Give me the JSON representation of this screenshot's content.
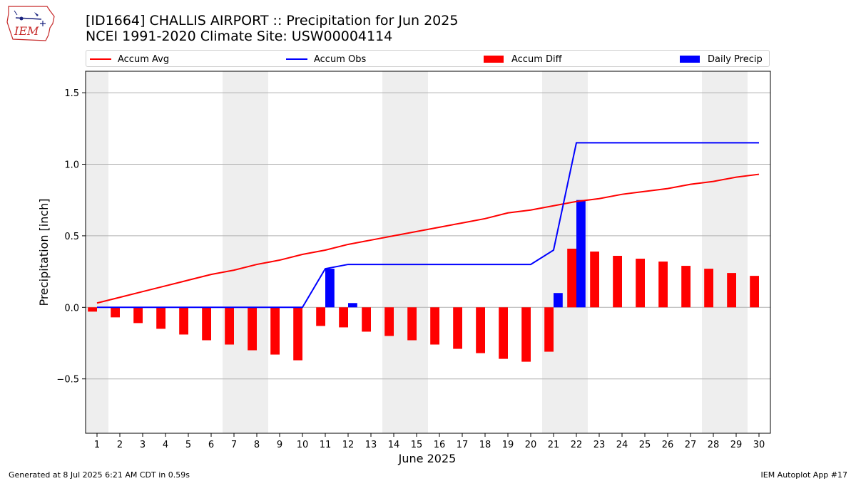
{
  "header": {
    "title_line1": "[ID1664] CHALLIS AIRPORT :: Precipitation for Jun 2025",
    "title_line2": "NCEI 1991-2020 Climate Site: USW00004114",
    "logo_text": "IEM"
  },
  "footer": {
    "left": "Generated at 8 Jul 2025 6:21 AM CDT in 0.59s",
    "right": "IEM Autoplot App #17"
  },
  "colors": {
    "accum_avg": "#ff0000",
    "accum_obs": "#0000ff",
    "accum_diff": "#ff0000",
    "daily_precip": "#0000ff",
    "weekend_shade": "#eeeeee",
    "grid": "#b0b0b0"
  },
  "chart_data": {
    "type": "bar",
    "xlabel": "June 2025",
    "ylabel": "Precipitation [inch]",
    "ylim": [
      -0.88,
      1.65
    ],
    "yticks": [
      -0.5,
      0.0,
      0.5,
      1.0,
      1.5
    ],
    "ytick_labels": [
      "−0.5",
      "0.0",
      "0.5",
      "1.0",
      "1.5"
    ],
    "grid": "horizontal",
    "legend_position": "top",
    "x": [
      1,
      2,
      3,
      4,
      5,
      6,
      7,
      8,
      9,
      10,
      11,
      12,
      13,
      14,
      15,
      16,
      17,
      18,
      19,
      20,
      21,
      22,
      23,
      24,
      25,
      26,
      27,
      28,
      29,
      30
    ],
    "shaded_days": [
      1,
      7,
      8,
      14,
      15,
      21,
      22,
      28,
      29
    ],
    "series": [
      {
        "name": "Accum Avg",
        "kind": "line",
        "values": [
          0.03,
          0.07,
          0.11,
          0.15,
          0.19,
          0.23,
          0.26,
          0.3,
          0.33,
          0.37,
          0.4,
          0.44,
          0.47,
          0.5,
          0.53,
          0.56,
          0.59,
          0.62,
          0.66,
          0.68,
          0.71,
          0.74,
          0.76,
          0.79,
          0.81,
          0.83,
          0.86,
          0.88,
          0.91,
          0.93
        ]
      },
      {
        "name": "Accum Obs",
        "kind": "line",
        "values": [
          0,
          0,
          0,
          0,
          0,
          0,
          0,
          0,
          0,
          0,
          0.27,
          0.3,
          0.3,
          0.3,
          0.3,
          0.3,
          0.3,
          0.3,
          0.3,
          0.3,
          0.4,
          1.15,
          1.15,
          1.15,
          1.15,
          1.15,
          1.15,
          1.15,
          1.15,
          1.15
        ]
      },
      {
        "name": "Accum Diff",
        "kind": "bar",
        "values": [
          -0.03,
          -0.07,
          -0.11,
          -0.15,
          -0.19,
          -0.23,
          -0.26,
          -0.3,
          -0.33,
          -0.37,
          -0.13,
          -0.14,
          -0.17,
          -0.2,
          -0.23,
          -0.26,
          -0.29,
          -0.32,
          -0.36,
          -0.38,
          -0.31,
          0.41,
          0.39,
          0.36,
          0.34,
          0.32,
          0.29,
          0.27,
          0.24,
          0.22
        ]
      },
      {
        "name": "Daily Precip",
        "kind": "bar",
        "values": [
          0,
          0,
          0,
          0,
          0,
          0,
          0,
          0,
          0,
          0,
          0.27,
          0.03,
          0,
          0,
          0,
          0,
          0,
          0,
          0,
          0,
          0.1,
          0.75,
          0,
          0,
          0,
          0,
          0,
          0,
          0,
          0
        ]
      }
    ]
  }
}
